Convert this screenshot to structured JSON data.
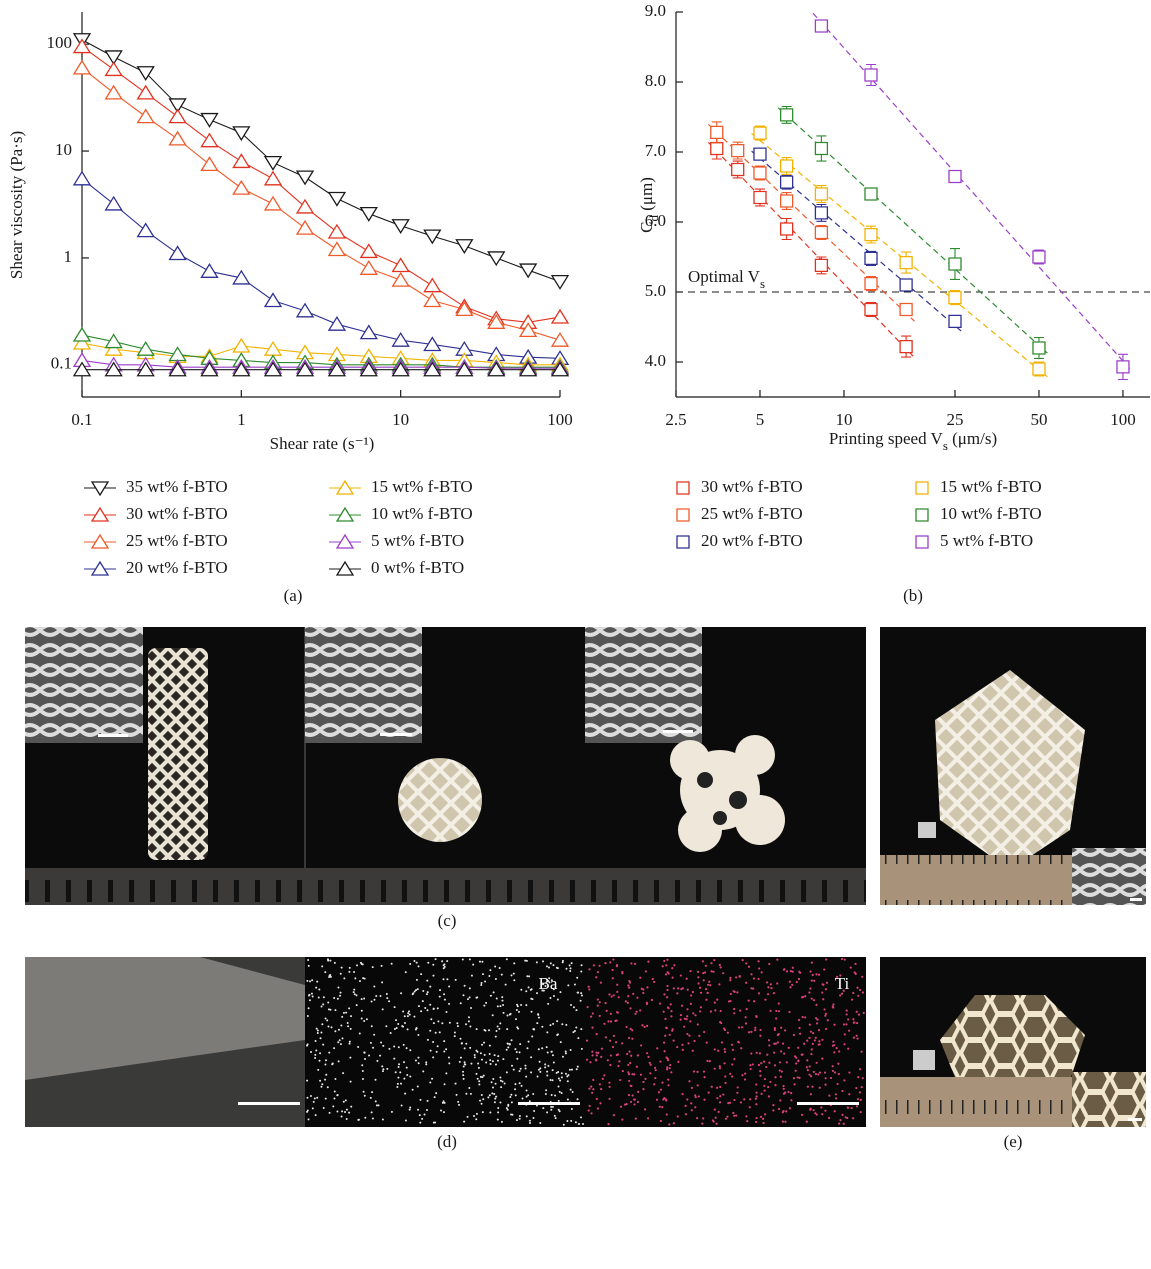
{
  "chart_data": [
    {
      "type": "line",
      "panel_label": "(a)",
      "xlabel": "Shear rate (s⁻¹)",
      "ylabel": "Shear viscosity (Pa·s)",
      "xscale": "log",
      "yscale": "log",
      "xlim": [
        0.1,
        100
      ],
      "ylim": [
        0.05,
        200
      ],
      "xticks": [
        0.1,
        1,
        10,
        100
      ],
      "yticks": [
        0.1,
        1,
        10,
        100
      ],
      "legend": "below",
      "x": [
        0.1,
        0.158,
        0.251,
        0.398,
        0.631,
        1,
        1.58,
        2.51,
        3.98,
        6.31,
        10,
        15.8,
        25.1,
        39.8,
        63.1,
        100
      ],
      "series": [
        {
          "name": "35 wt% f-BTO",
          "color": "#1a1a1a",
          "marker": "triangle-down",
          "values": [
            110,
            76,
            54,
            27,
            19.7,
            14.8,
            7.8,
            5.7,
            3.6,
            2.6,
            2.0,
            1.6,
            1.3,
            1.0,
            0.77,
            0.6
          ]
        },
        {
          "name": "30 wt% f-BTO",
          "color": "#e2321f",
          "marker": "triangle-up",
          "values": [
            95,
            58,
            35,
            21,
            12.5,
            8,
            5.5,
            3,
            1.75,
            1.15,
            0.85,
            0.55,
            0.35,
            0.27,
            0.25,
            0.28
          ]
        },
        {
          "name": "25 wt% f-BTO",
          "color": "#ef5a2a",
          "marker": "triangle-up",
          "values": [
            60,
            35,
            21,
            13,
            7.5,
            4.5,
            3.2,
            1.9,
            1.2,
            0.8,
            0.62,
            0.4,
            0.33,
            0.25,
            0.21,
            0.17
          ]
        },
        {
          "name": "20 wt% f-BTO",
          "color": "#2e3192",
          "marker": "triangle-up",
          "values": [
            5.5,
            3.2,
            1.8,
            1.1,
            0.75,
            0.65,
            0.4,
            0.32,
            0.24,
            0.2,
            0.17,
            0.155,
            0.14,
            0.125,
            0.118,
            0.115
          ]
        },
        {
          "name": "15 wt% f-BTO",
          "color": "#f2b200",
          "marker": "triangle-up",
          "values": [
            0.16,
            0.14,
            0.13,
            0.12,
            0.12,
            0.15,
            0.14,
            0.13,
            0.125,
            0.12,
            0.115,
            0.11,
            0.11,
            0.105,
            0.1,
            0.1
          ]
        },
        {
          "name": "10 wt% f-BTO",
          "color": "#2e8b2e",
          "marker": "triangle-up",
          "values": [
            0.19,
            0.165,
            0.14,
            0.125,
            0.115,
            0.11,
            0.105,
            0.105,
            0.1,
            0.1,
            0.1,
            0.1,
            0.095,
            0.095,
            0.095,
            0.095
          ]
        },
        {
          "name": "5 wt% f-BTO",
          "color": "#9b3fc8",
          "marker": "triangle-up",
          "values": [
            0.11,
            0.1,
            0.1,
            0.095,
            0.095,
            0.095,
            0.095,
            0.095,
            0.095,
            0.095,
            0.095,
            0.095,
            0.095,
            0.093,
            0.093,
            0.093
          ]
        },
        {
          "name": "0 wt% f-BTO",
          "color": "#1a1a1a",
          "marker": "triangle-up",
          "values": [
            0.09,
            0.09,
            0.09,
            0.09,
            0.09,
            0.09,
            0.09,
            0.09,
            0.09,
            0.09,
            0.09,
            0.09,
            0.09,
            0.09,
            0.09,
            0.09
          ]
        }
      ]
    },
    {
      "type": "scatter",
      "panel_label": "(b)",
      "xlabel_parts": [
        {
          "text": "Printing speed V"
        },
        {
          "text": "s",
          "sub": true
        },
        {
          "text": " (μm/s)"
        }
      ],
      "ylabel_parts": [
        {
          "text": "C"
        },
        {
          "text": "d",
          "sub": true
        },
        {
          "text": " (μm)"
        }
      ],
      "xscale": "log",
      "xlim": [
        2.5,
        125
      ],
      "ylim": [
        3.5,
        9.0
      ],
      "xticks": [
        2.5,
        5,
        10,
        25,
        50,
        100
      ],
      "yticks": [
        {
          "value": 4,
          "label": "4.0"
        },
        {
          "value": 5,
          "label": "5.0"
        },
        {
          "value": 6,
          "label": "6.0"
        },
        {
          "value": 7,
          "label": "7.0"
        },
        {
          "value": 8,
          "label": "8.0"
        },
        {
          "value": 9,
          "label": "9.0"
        }
      ],
      "reference_line": {
        "value": 5,
        "label_parts": [
          {
            "text": "Optimal V"
          },
          {
            "text": "s",
            "sub": true
          }
        ]
      },
      "fit_lines": true,
      "legend": "below",
      "series": [
        {
          "name": "30 wt% f-BTO",
          "color": "#e2321f",
          "marker": "square",
          "x": [
            3.5,
            4.16,
            5,
            6.23,
            8.3,
            12.5,
            16.7
          ],
          "values": [
            7.05,
            6.75,
            6.35,
            5.9,
            5.38,
            4.75,
            4.22
          ],
          "errors": [
            0.15,
            0.12,
            0.12,
            0.15,
            0.12,
            0.1,
            0.15
          ]
        },
        {
          "name": "25 wt% f-BTO",
          "color": "#ef5a2a",
          "marker": "square",
          "x": [
            3.5,
            4.16,
            5,
            6.23,
            8.3,
            12.5,
            16.7
          ],
          "values": [
            7.28,
            7.02,
            6.7,
            6.3,
            5.85,
            5.12,
            4.75
          ],
          "errors": [
            0.15,
            0.12,
            0.1,
            0.12,
            0.1,
            0.1,
            0.08
          ]
        },
        {
          "name": "20 wt% f-BTO",
          "color": "#2e3192",
          "marker": "square",
          "x": [
            5,
            6.23,
            8.3,
            12.5,
            16.7,
            25
          ],
          "values": [
            6.97,
            6.57,
            6.13,
            5.48,
            5.1,
            4.58
          ],
          "errors": [
            0.08,
            0.1,
            0.12,
            0.1,
            0.08,
            0.08
          ]
        },
        {
          "name": "15 wt% f-BTO",
          "color": "#f2b200",
          "marker": "square",
          "x": [
            5,
            6.23,
            8.3,
            12.5,
            16.7,
            25,
            50
          ],
          "values": [
            7.27,
            6.8,
            6.4,
            5.82,
            5.42,
            4.92,
            3.9
          ],
          "errors": [
            0.1,
            0.12,
            0.12,
            0.12,
            0.15,
            0.1,
            0.1
          ]
        },
        {
          "name": "10 wt% f-BTO",
          "color": "#2e8b2e",
          "marker": "square",
          "x": [
            6.23,
            8.3,
            12.5,
            25,
            50
          ],
          "values": [
            7.53,
            7.05,
            6.4,
            5.4,
            4.2
          ],
          "errors": [
            0.12,
            0.18,
            0.08,
            0.22,
            0.15
          ]
        },
        {
          "name": "5 wt% f-BTO",
          "color": "#9b3fc8",
          "marker": "square",
          "x": [
            8.3,
            12.5,
            25,
            50,
            100
          ],
          "values": [
            8.8,
            8.1,
            6.65,
            5.5,
            3.93
          ],
          "errors": [
            0.05,
            0.15,
            0.06,
            0.1,
            0.18
          ]
        }
      ]
    }
  ],
  "panels": {
    "c": {
      "label": "(c)"
    },
    "d": {
      "label": "(d)",
      "maps": [
        "Ba",
        "Ti"
      ]
    },
    "e": {
      "label": "(e)"
    }
  }
}
